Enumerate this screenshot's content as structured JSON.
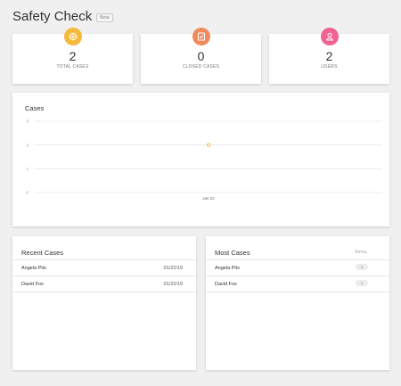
{
  "header": {
    "title": "Safety Check",
    "badge": "Beta"
  },
  "stats": [
    {
      "value": "2",
      "label": "TOTAL CASES",
      "icon": "target-icon",
      "color": "#f6b93b"
    },
    {
      "value": "0",
      "label": "CLOSED CASES",
      "icon": "checklist-icon",
      "color": "#f08a5d"
    },
    {
      "value": "2",
      "label": "USERS",
      "icon": "user-icon",
      "color": "#f06292"
    }
  ],
  "chart_data": {
    "type": "line",
    "title": "Cases",
    "categories": [
      "Jan 22"
    ],
    "values": [
      2
    ],
    "ylim": [
      0,
      3
    ],
    "yticks": [
      "0",
      "1",
      "2",
      "3"
    ],
    "grid": true,
    "series_color": "#f6b93b"
  },
  "recent_cases": {
    "title": "Recent Cases",
    "rows": [
      {
        "name": "Angela Pits",
        "date": "01/22/19"
      },
      {
        "name": "David Fox",
        "date": "01/22/19"
      }
    ]
  },
  "most_cases": {
    "title": "Most Cases",
    "column_label": "TOTAL",
    "rows": [
      {
        "name": "Angela Pits",
        "total": "1"
      },
      {
        "name": "David Fox",
        "total": "1"
      }
    ]
  }
}
